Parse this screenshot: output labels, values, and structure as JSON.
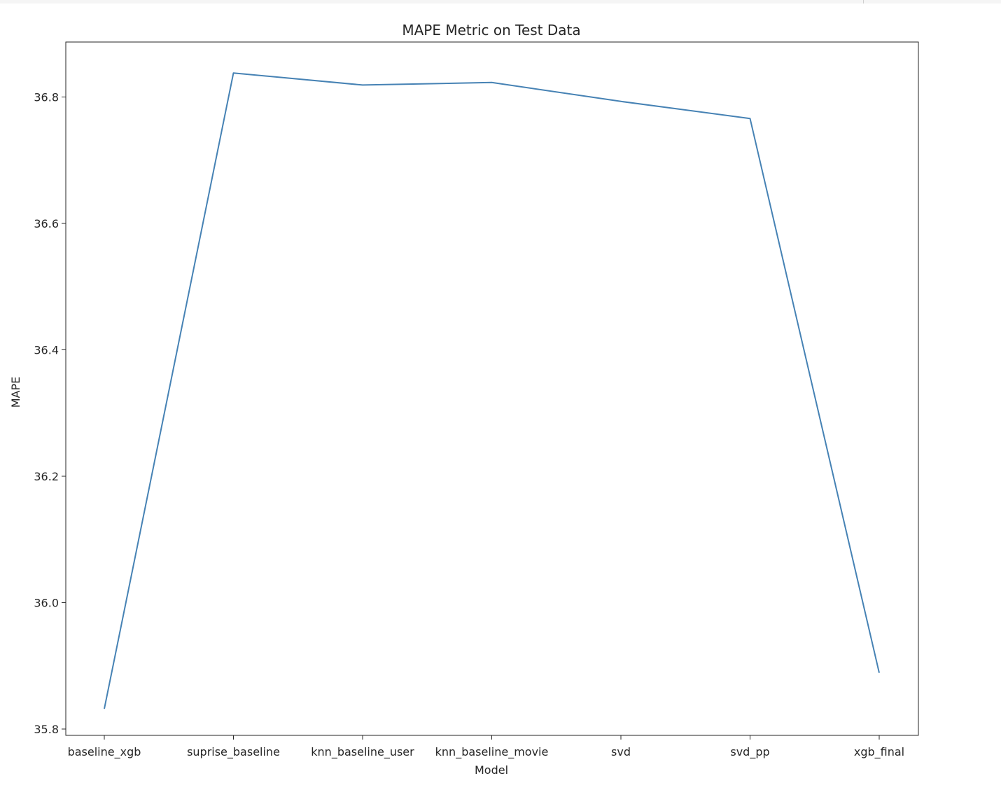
{
  "chart_data": {
    "type": "line",
    "title": "MAPE Metric on Test Data",
    "xlabel": "Model",
    "ylabel": "MAPE",
    "categories": [
      "baseline_xgb",
      "suprise_baseline",
      "knn_baseline_user",
      "knn_baseline_movie",
      "svd",
      "svd_pp",
      "xgb_final"
    ],
    "series": [
      {
        "values": [
          35.832,
          36.838,
          36.819,
          36.823,
          36.793,
          36.766,
          35.889
        ]
      }
    ],
    "ylim": [
      35.79,
      36.887
    ],
    "yticks": [
      35.8,
      36.0,
      36.2,
      36.4,
      36.6,
      36.8
    ],
    "ytick_labels": [
      "35.8",
      "36.0",
      "36.2",
      "36.4",
      "36.6",
      "36.8"
    ],
    "grid": false,
    "line_color": "#4682b4"
  }
}
